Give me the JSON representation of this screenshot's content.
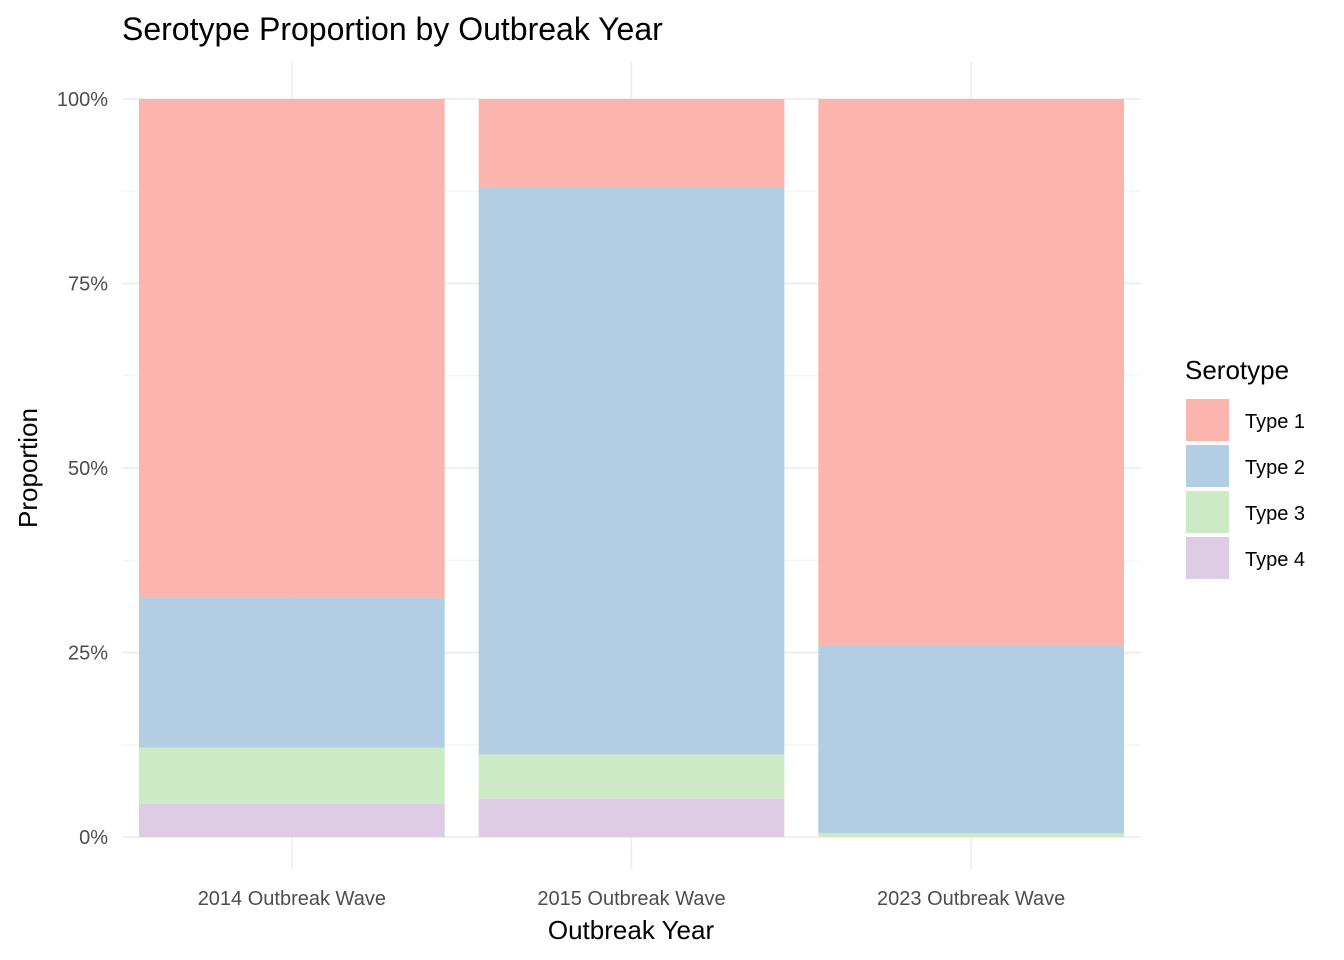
{
  "chart_data": {
    "type": "bar",
    "stacked": true,
    "percent": true,
    "title": "Serotype Proportion by Outbreak Year",
    "xlabel": "Outbreak Year",
    "ylabel": "Proportion",
    "ylim": [
      0,
      1
    ],
    "yticks": [
      0,
      0.25,
      0.5,
      0.75,
      1.0
    ],
    "ytick_labels": [
      "0%",
      "25%",
      "50%",
      "75%",
      "100%"
    ],
    "grid": true,
    "categories": [
      "2014 Outbreak Wave",
      "2015 Outbreak Wave",
      "2023 Outbreak Wave"
    ],
    "series": [
      {
        "name": "Type 1",
        "color": "#FBB4AE",
        "values": [
          0.676,
          0.12,
          0.74
        ]
      },
      {
        "name": "Type 2",
        "color": "#B3CDE3",
        "values": [
          0.203,
          0.768,
          0.255
        ]
      },
      {
        "name": "Type 3",
        "color": "#CCEBC5",
        "values": [
          0.076,
          0.06,
          0.005
        ]
      },
      {
        "name": "Type 4",
        "color": "#DECBE4",
        "values": [
          0.045,
          0.052,
          0.0
        ]
      }
    ],
    "legend": {
      "title": "Serotype",
      "position": "right"
    }
  }
}
